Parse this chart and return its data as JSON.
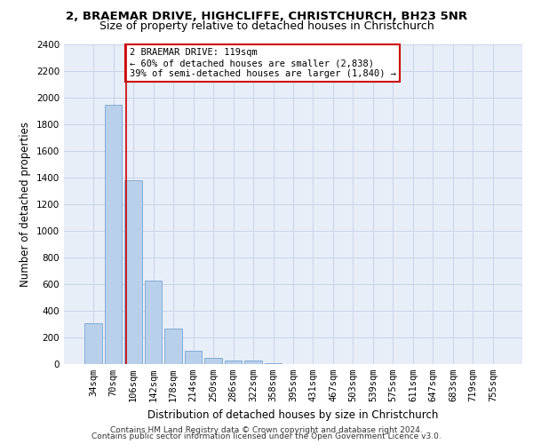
{
  "title1": "2, BRAEMAR DRIVE, HIGHCLIFFE, CHRISTCHURCH, BH23 5NR",
  "title2": "Size of property relative to detached houses in Christchurch",
  "xlabel": "Distribution of detached houses by size in Christchurch",
  "ylabel": "Number of detached properties",
  "bar_labels": [
    "34sqm",
    "70sqm",
    "106sqm",
    "142sqm",
    "178sqm",
    "214sqm",
    "250sqm",
    "286sqm",
    "322sqm",
    "358sqm",
    "395sqm",
    "431sqm",
    "467sqm",
    "503sqm",
    "539sqm",
    "575sqm",
    "611sqm",
    "647sqm",
    "683sqm",
    "719sqm",
    "755sqm"
  ],
  "bar_values": [
    310,
    1950,
    1380,
    630,
    270,
    100,
    45,
    30,
    25,
    5,
    2,
    1,
    0,
    0,
    0,
    0,
    0,
    0,
    0,
    0,
    0
  ],
  "bar_color": "#b8d0ea",
  "bar_edge_color": "#6699cc",
  "bar_edge_width": 0.5,
  "grid_color": "#c8d4e8",
  "bg_color": "#e8eef8",
  "annotation_text": "2 BRAEMAR DRIVE: 119sqm\n← 60% of detached houses are smaller (2,838)\n39% of semi-detached houses are larger (1,840) →",
  "annotation_box_color": "#ffffff",
  "annotation_box_edge_color": "#cc0000",
  "vline_x": 1.65,
  "vline_color": "#cc0000",
  "ylim": [
    0,
    2400
  ],
  "yticks": [
    0,
    200,
    400,
    600,
    800,
    1000,
    1200,
    1400,
    1600,
    1800,
    2000,
    2200,
    2400
  ],
  "footer1": "Contains HM Land Registry data © Crown copyright and database right 2024.",
  "footer2": "Contains public sector information licensed under the Open Government Licence v3.0.",
  "title1_fontsize": 9.5,
  "title2_fontsize": 9,
  "axis_label_fontsize": 8.5,
  "tick_fontsize": 7.5,
  "annotation_fontsize": 7.5,
  "footer_fontsize": 6.5
}
